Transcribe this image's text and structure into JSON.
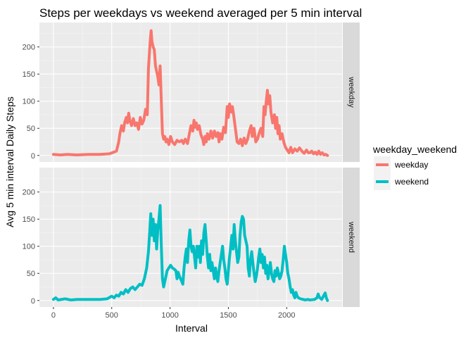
{
  "chart_data": {
    "type": "line",
    "title": "Steps per weekdays vs weekend averaged per 5 min interval",
    "xlabel": "Interval",
    "ylabel": "Avg 5 min interval Daily Steps",
    "xlim": [
      -120,
      2475
    ],
    "ylim": [
      -12,
      245
    ],
    "x_ticks": [
      0,
      500,
      1000,
      1500,
      2000
    ],
    "y_ticks": [
      0,
      50,
      100,
      150,
      200
    ],
    "grid": true,
    "legend": {
      "title": "weekday_weekend",
      "position": "right"
    },
    "series": [
      {
        "name": "weekday",
        "color": "#F8766D",
        "points": [
          [
            0,
            2
          ],
          [
            60,
            1
          ],
          [
            120,
            2
          ],
          [
            200,
            1
          ],
          [
            300,
            2
          ],
          [
            400,
            2
          ],
          [
            480,
            3
          ],
          [
            540,
            8
          ],
          [
            560,
            25
          ],
          [
            570,
            40
          ],
          [
            585,
            55
          ],
          [
            600,
            45
          ],
          [
            610,
            60
          ],
          [
            625,
            70
          ],
          [
            635,
            60
          ],
          [
            645,
            78
          ],
          [
            655,
            65
          ],
          [
            670,
            55
          ],
          [
            685,
            68
          ],
          [
            700,
            55
          ],
          [
            715,
            60
          ],
          [
            730,
            48
          ],
          [
            745,
            70
          ],
          [
            760,
            58
          ],
          [
            775,
            65
          ],
          [
            790,
            85
          ],
          [
            805,
            75
          ],
          [
            815,
            160
          ],
          [
            825,
            195
          ],
          [
            832,
            215
          ],
          [
            838,
            230
          ],
          [
            845,
            210
          ],
          [
            855,
            200
          ],
          [
            865,
            195
          ],
          [
            875,
            165
          ],
          [
            885,
            155
          ],
          [
            895,
            145
          ],
          [
            905,
            130
          ],
          [
            915,
            165
          ],
          [
            925,
            100
          ],
          [
            935,
            40
          ],
          [
            945,
            30
          ],
          [
            955,
            35
          ],
          [
            965,
            25
          ],
          [
            975,
            30
          ],
          [
            990,
            20
          ],
          [
            1005,
            35
          ],
          [
            1020,
            25
          ],
          [
            1040,
            20
          ],
          [
            1060,
            28
          ],
          [
            1080,
            25
          ],
          [
            1100,
            28
          ],
          [
            1115,
            22
          ],
          [
            1130,
            30
          ],
          [
            1150,
            22
          ],
          [
            1170,
            45
          ],
          [
            1180,
            55
          ],
          [
            1195,
            45
          ],
          [
            1205,
            65
          ],
          [
            1215,
            52
          ],
          [
            1225,
            60
          ],
          [
            1235,
            48
          ],
          [
            1250,
            55
          ],
          [
            1265,
            38
          ],
          [
            1280,
            30
          ],
          [
            1290,
            20
          ],
          [
            1300,
            35
          ],
          [
            1310,
            25
          ],
          [
            1320,
            40
          ],
          [
            1335,
            30
          ],
          [
            1350,
            45
          ],
          [
            1365,
            32
          ],
          [
            1380,
            45
          ],
          [
            1395,
            35
          ],
          [
            1410,
            42
          ],
          [
            1420,
            25
          ],
          [
            1430,
            40
          ],
          [
            1445,
            30
          ],
          [
            1460,
            52
          ],
          [
            1475,
            42
          ],
          [
            1490,
            90
          ],
          [
            1500,
            70
          ],
          [
            1510,
            95
          ],
          [
            1525,
            80
          ],
          [
            1535,
            90
          ],
          [
            1545,
            75
          ],
          [
            1560,
            50
          ],
          [
            1575,
            25
          ],
          [
            1590,
            22
          ],
          [
            1605,
            30
          ],
          [
            1620,
            18
          ],
          [
            1635,
            32
          ],
          [
            1650,
            22
          ],
          [
            1665,
            30
          ],
          [
            1680,
            45
          ],
          [
            1695,
            55
          ],
          [
            1705,
            35
          ],
          [
            1720,
            50
          ],
          [
            1735,
            25
          ],
          [
            1750,
            30
          ],
          [
            1765,
            42
          ],
          [
            1780,
            50
          ],
          [
            1795,
            35
          ],
          [
            1805,
            90
          ],
          [
            1815,
            75
          ],
          [
            1825,
            100
          ],
          [
            1835,
            120
          ],
          [
            1845,
            95
          ],
          [
            1855,
            110
          ],
          [
            1865,
            80
          ],
          [
            1880,
            60
          ],
          [
            1895,
            75
          ],
          [
            1905,
            50
          ],
          [
            1915,
            70
          ],
          [
            1925,
            40
          ],
          [
            1935,
            55
          ],
          [
            1945,
            30
          ],
          [
            1960,
            40
          ],
          [
            1975,
            25
          ],
          [
            1990,
            15
          ],
          [
            2005,
            10
          ],
          [
            2020,
            5
          ],
          [
            2035,
            15
          ],
          [
            2050,
            5
          ],
          [
            2070,
            12
          ],
          [
            2090,
            8
          ],
          [
            2110,
            14
          ],
          [
            2130,
            8
          ],
          [
            2150,
            4
          ],
          [
            2170,
            10
          ],
          [
            2185,
            5
          ],
          [
            2200,
            5
          ],
          [
            2215,
            8
          ],
          [
            2230,
            3
          ],
          [
            2245,
            6
          ],
          [
            2260,
            2
          ],
          [
            2275,
            8
          ],
          [
            2290,
            2
          ],
          [
            2305,
            5
          ],
          [
            2320,
            1
          ],
          [
            2335,
            2
          ],
          [
            2350,
            0
          ]
        ]
      },
      {
        "name": "weekend",
        "color": "#00BFC4",
        "points": [
          [
            0,
            2
          ],
          [
            20,
            5
          ],
          [
            40,
            1
          ],
          [
            100,
            3
          ],
          [
            150,
            1
          ],
          [
            200,
            2
          ],
          [
            300,
            2
          ],
          [
            400,
            2
          ],
          [
            460,
            3
          ],
          [
            500,
            8
          ],
          [
            520,
            5
          ],
          [
            540,
            10
          ],
          [
            560,
            8
          ],
          [
            580,
            15
          ],
          [
            600,
            12
          ],
          [
            620,
            20
          ],
          [
            640,
            15
          ],
          [
            660,
            22
          ],
          [
            680,
            25
          ],
          [
            700,
            20
          ],
          [
            720,
            25
          ],
          [
            740,
            30
          ],
          [
            760,
            28
          ],
          [
            780,
            40
          ],
          [
            800,
            60
          ],
          [
            815,
            90
          ],
          [
            825,
            125
          ],
          [
            835,
            160
          ],
          [
            845,
            120
          ],
          [
            855,
            150
          ],
          [
            865,
            110
          ],
          [
            875,
            140
          ],
          [
            885,
            95
          ],
          [
            895,
            130
          ],
          [
            905,
            150
          ],
          [
            915,
            175
          ],
          [
            925,
            100
          ],
          [
            935,
            40
          ],
          [
            945,
            25
          ],
          [
            955,
            35
          ],
          [
            965,
            45
          ],
          [
            975,
            55
          ],
          [
            990,
            60
          ],
          [
            1005,
            65
          ],
          [
            1020,
            60
          ],
          [
            1035,
            58
          ],
          [
            1050,
            55
          ],
          [
            1060,
            40
          ],
          [
            1070,
            52
          ],
          [
            1080,
            45
          ],
          [
            1095,
            38
          ],
          [
            1110,
            30
          ],
          [
            1120,
            60
          ],
          [
            1130,
            80
          ],
          [
            1140,
            95
          ],
          [
            1150,
            70
          ],
          [
            1160,
            110
          ],
          [
            1170,
            130
          ],
          [
            1180,
            100
          ],
          [
            1190,
            90
          ],
          [
            1200,
            100
          ],
          [
            1210,
            80
          ],
          [
            1220,
            60
          ],
          [
            1230,
            100
          ],
          [
            1240,
            80
          ],
          [
            1250,
            100
          ],
          [
            1260,
            70
          ],
          [
            1270,
            110
          ],
          [
            1280,
            85
          ],
          [
            1290,
            125
          ],
          [
            1300,
            140
          ],
          [
            1310,
            110
          ],
          [
            1320,
            80
          ],
          [
            1330,
            60
          ],
          [
            1340,
            85
          ],
          [
            1350,
            55
          ],
          [
            1360,
            70
          ],
          [
            1370,
            55
          ],
          [
            1380,
            40
          ],
          [
            1390,
            60
          ],
          [
            1400,
            45
          ],
          [
            1410,
            35
          ],
          [
            1420,
            55
          ],
          [
            1430,
            70
          ],
          [
            1440,
            85
          ],
          [
            1450,
            100
          ],
          [
            1460,
            75
          ],
          [
            1470,
            60
          ],
          [
            1480,
            40
          ],
          [
            1490,
            30
          ],
          [
            1500,
            55
          ],
          [
            1510,
            80
          ],
          [
            1520,
            100
          ],
          [
            1530,
            120
          ],
          [
            1540,
            95
          ],
          [
            1550,
            140
          ],
          [
            1560,
            110
          ],
          [
            1570,
            90
          ],
          [
            1580,
            70
          ],
          [
            1590,
            80
          ],
          [
            1600,
            120
          ],
          [
            1610,
            145
          ],
          [
            1620,
            155
          ],
          [
            1630,
            150
          ],
          [
            1640,
            120
          ],
          [
            1650,
            110
          ],
          [
            1660,
            100
          ],
          [
            1670,
            60
          ],
          [
            1680,
            45
          ],
          [
            1690,
            75
          ],
          [
            1700,
            90
          ],
          [
            1710,
            70
          ],
          [
            1720,
            50
          ],
          [
            1730,
            35
          ],
          [
            1740,
            45
          ],
          [
            1750,
            60
          ],
          [
            1760,
            80
          ],
          [
            1770,
            95
          ],
          [
            1780,
            70
          ],
          [
            1790,
            85
          ],
          [
            1800,
            60
          ],
          [
            1810,
            80
          ],
          [
            1820,
            50
          ],
          [
            1830,
            65
          ],
          [
            1840,
            40
          ],
          [
            1850,
            55
          ],
          [
            1860,
            70
          ],
          [
            1870,
            50
          ],
          [
            1880,
            40
          ],
          [
            1890,
            35
          ],
          [
            1900,
            55
          ],
          [
            1910,
            45
          ],
          [
            1920,
            60
          ],
          [
            1930,
            50
          ],
          [
            1940,
            40
          ],
          [
            1950,
            45
          ],
          [
            1960,
            55
          ],
          [
            1970,
            75
          ],
          [
            1980,
            100
          ],
          [
            1990,
            85
          ],
          [
            2000,
            70
          ],
          [
            2010,
            50
          ],
          [
            2020,
            40
          ],
          [
            2030,
            25
          ],
          [
            2040,
            15
          ],
          [
            2050,
            20
          ],
          [
            2060,
            10
          ],
          [
            2070,
            5
          ],
          [
            2080,
            15
          ],
          [
            2090,
            8
          ],
          [
            2100,
            5
          ],
          [
            2120,
            3
          ],
          [
            2140,
            2
          ],
          [
            2160,
            1
          ],
          [
            2180,
            2
          ],
          [
            2200,
            1
          ],
          [
            2240,
            2
          ],
          [
            2260,
            5
          ],
          [
            2270,
            12
          ],
          [
            2280,
            6
          ],
          [
            2300,
            2
          ],
          [
            2320,
            10
          ],
          [
            2330,
            14
          ],
          [
            2340,
            5
          ],
          [
            2350,
            0
          ]
        ]
      }
    ]
  }
}
